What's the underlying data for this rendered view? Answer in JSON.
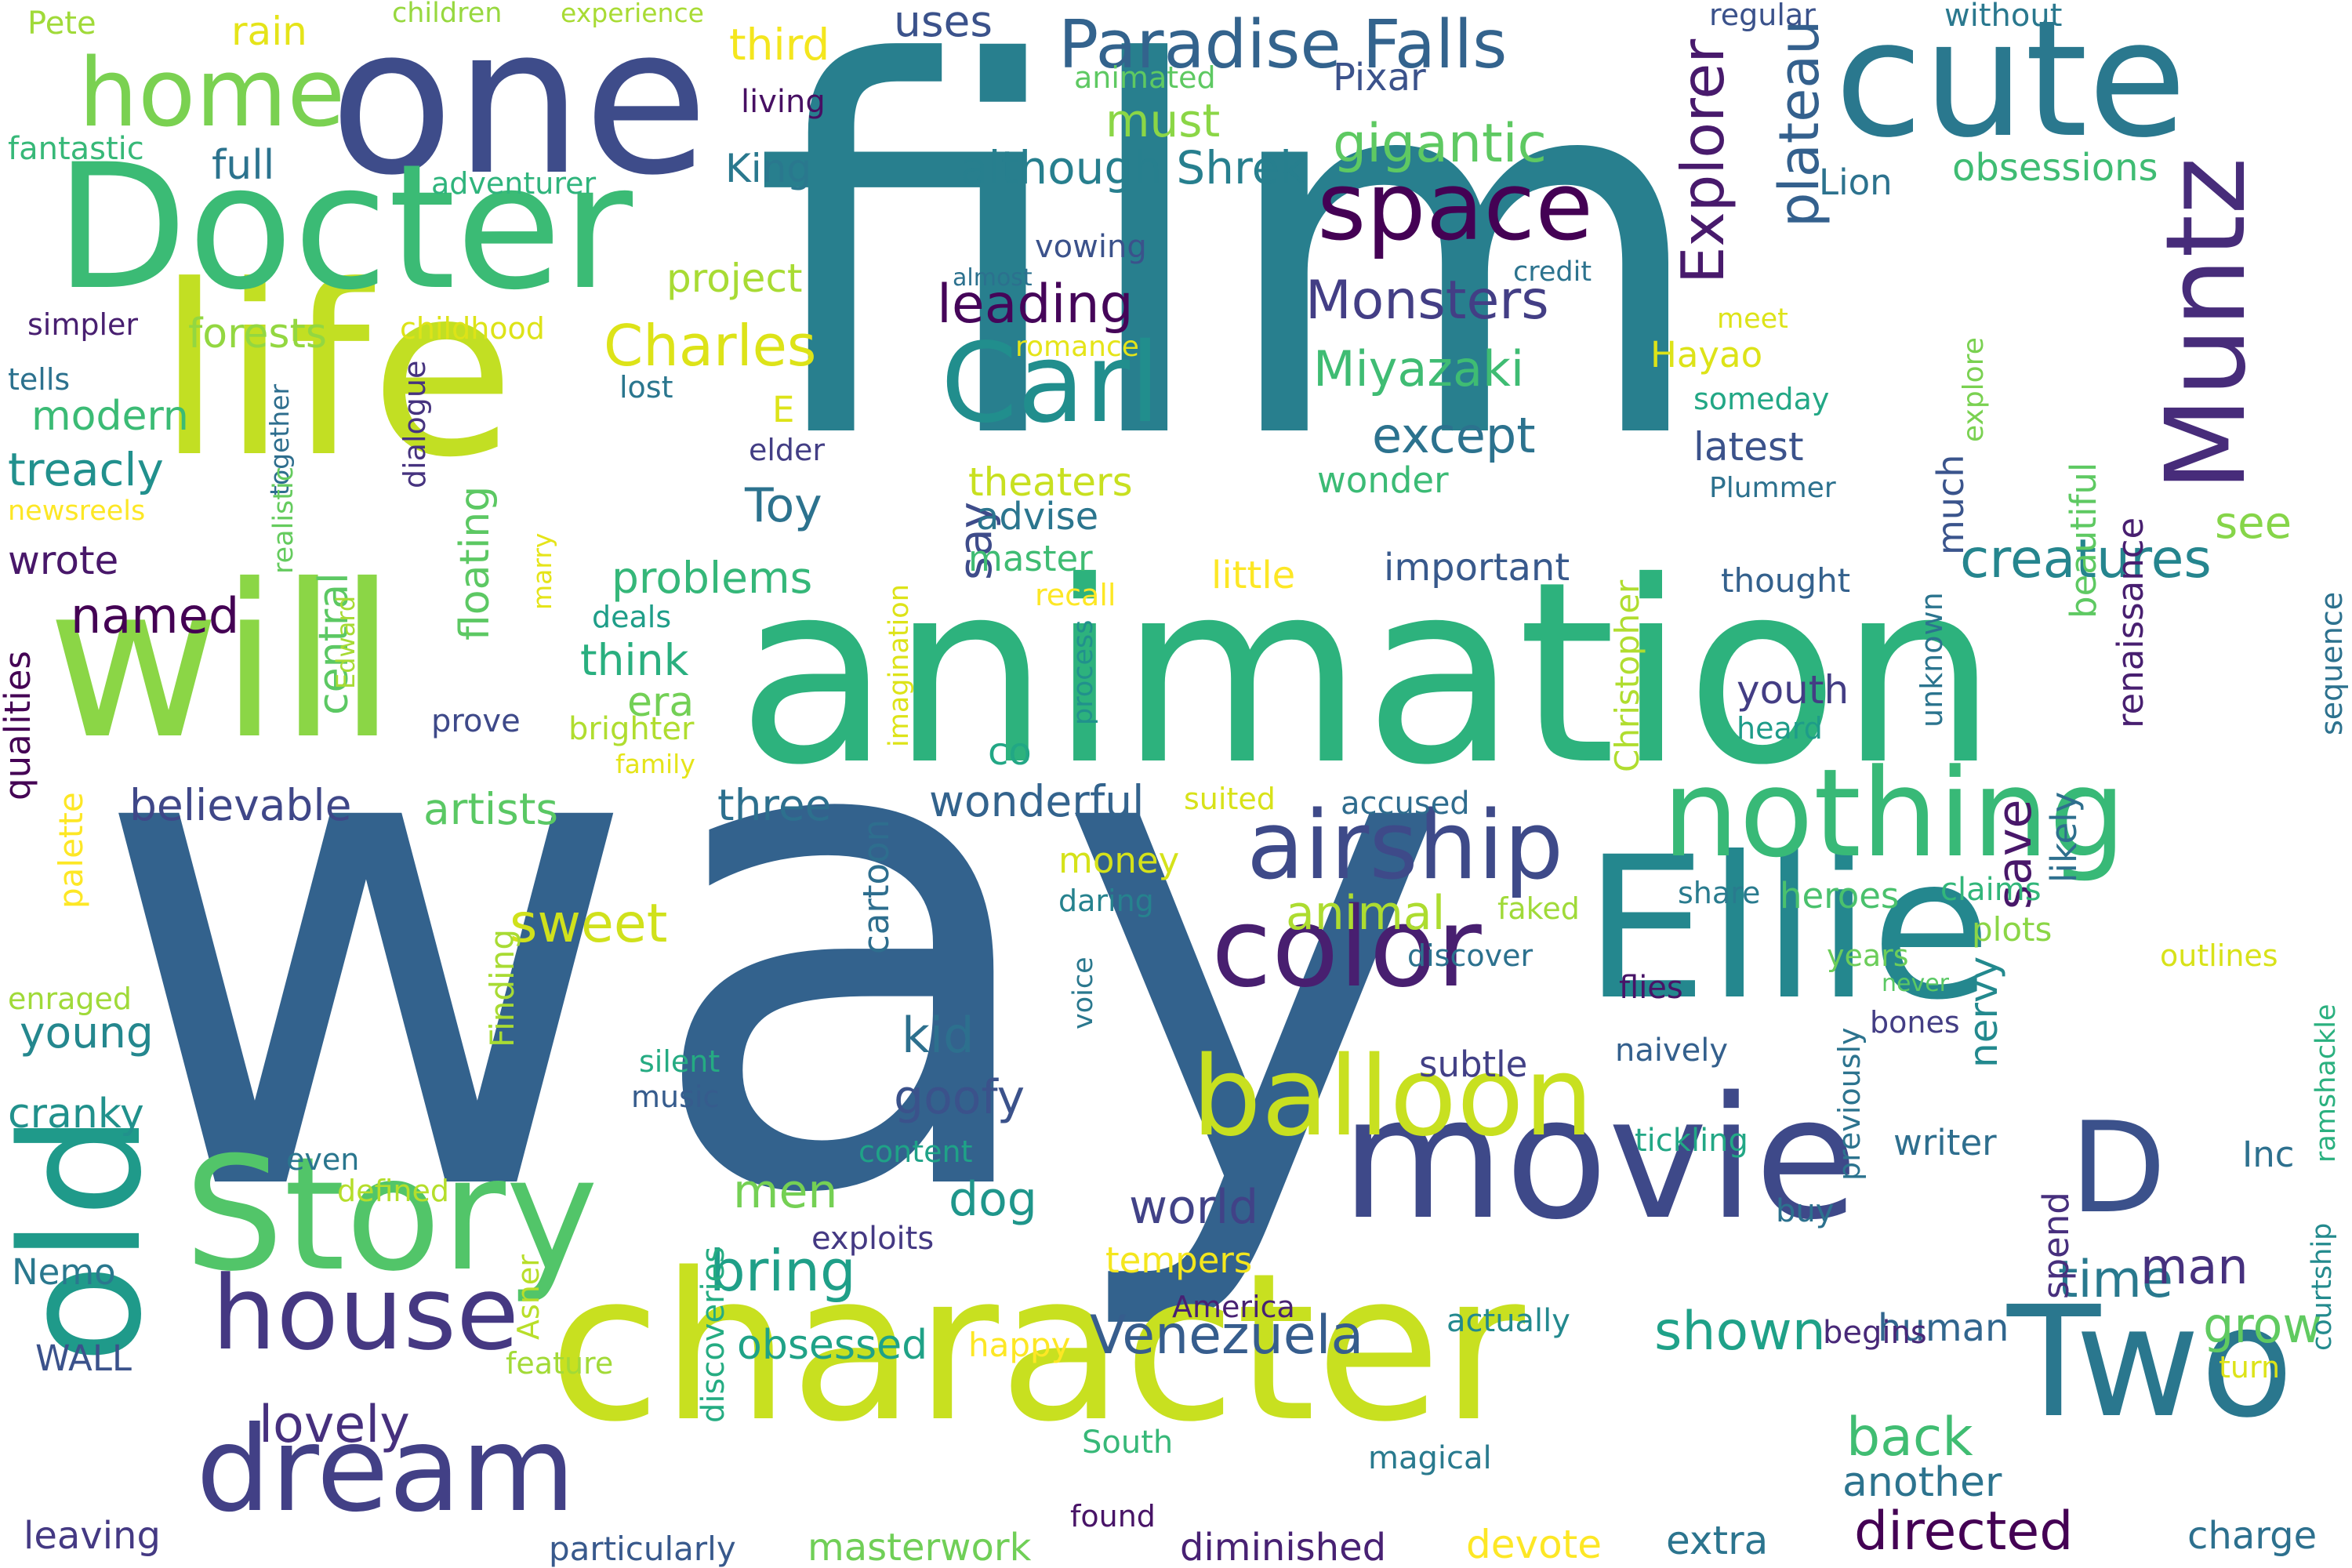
{
  "cloud": {
    "colors": [
      "#440154",
      "#472c7a",
      "#3b518b",
      "#2c718e",
      "#21908d",
      "#27ad81",
      "#5cc863",
      "#aadc32",
      "#d2e21b",
      "#fde725"
    ],
    "words": [
      {
        "text": "film",
        "color": "#287f8e"
      },
      {
        "text": "way",
        "color": "#33628d"
      },
      {
        "text": "animation",
        "color": "#2db27d"
      },
      {
        "text": "character",
        "color": "#c8e020"
      },
      {
        "text": "one",
        "color": "#3e4c8a"
      },
      {
        "text": "life",
        "color": "#c2df23"
      },
      {
        "text": "will",
        "color": "#8bd646"
      },
      {
        "text": "Docter",
        "color": "#3bbb75"
      },
      {
        "text": "cute",
        "color": "#2a788e"
      },
      {
        "text": "Ellie",
        "color": "#24878e"
      },
      {
        "text": "movie",
        "color": "#3e4989"
      },
      {
        "text": "Story",
        "color": "#52c569"
      },
      {
        "text": "old",
        "color": "#1f9a8a"
      },
      {
        "text": "Two",
        "color": "#2a778e"
      },
      {
        "text": "nothing",
        "color": "#38b977"
      },
      {
        "text": "dream",
        "color": "#424086"
      },
      {
        "text": "house",
        "color": "#453882"
      },
      {
        "text": "Muntz",
        "color": "#472c7a"
      },
      {
        "text": "airship",
        "color": "#3e4a89"
      },
      {
        "text": "color",
        "color": "#481f70"
      },
      {
        "text": "balloon",
        "color": "#c8e020"
      },
      {
        "text": "Carl",
        "color": "#218e8d"
      },
      {
        "text": "space",
        "color": "#440154"
      },
      {
        "text": "D",
        "color": "#3b518b"
      },
      {
        "text": "home",
        "color": "#7ad151"
      },
      {
        "text": "Paradise Falls",
        "color": "#33638d"
      },
      {
        "text": "Explorer",
        "color": "#481a6c"
      },
      {
        "text": "plateau",
        "color": "#34608d"
      },
      {
        "text": "creatures",
        "color": "#25858e"
      },
      {
        "text": "Monsters",
        "color": "#433e85"
      },
      {
        "text": "gigantic",
        "color": "#5ec962"
      },
      {
        "text": "except",
        "color": "#2c728e"
      },
      {
        "text": "Miyazaki",
        "color": "#3fbc73"
      },
      {
        "text": "leading",
        "color": "#450559"
      },
      {
        "text": "Charles",
        "color": "#dde318"
      },
      {
        "text": "Venezuela",
        "color": "#365d8d"
      },
      {
        "text": "back",
        "color": "#40bd72"
      },
      {
        "text": "directed",
        "color": "#440154"
      },
      {
        "text": "bring",
        "color": "#1f9f88"
      },
      {
        "text": "time",
        "color": "#29798e"
      },
      {
        "text": "man",
        "color": "#46307e"
      },
      {
        "text": "grow",
        "color": "#60ca60"
      },
      {
        "text": "shown",
        "color": "#1fa188"
      },
      {
        "text": "lovely",
        "color": "#46307e"
      },
      {
        "text": "sweet",
        "color": "#d0e11c"
      },
      {
        "text": "animal",
        "color": "#addc30"
      },
      {
        "text": "kid",
        "color": "#2d708e"
      },
      {
        "text": "dog",
        "color": "#1f968b"
      },
      {
        "text": "men",
        "color": "#75d054"
      },
      {
        "text": "world",
        "color": "#414287"
      },
      {
        "text": "goofy",
        "color": "#3b528b"
      },
      {
        "text": "save",
        "color": "#481769"
      },
      {
        "text": "see",
        "color": "#86d549"
      },
      {
        "text": "much",
        "color": "#3a548c"
      },
      {
        "text": "nervy",
        "color": "#23898e"
      },
      {
        "text": "another",
        "color": "#2c738e"
      },
      {
        "text": "extra",
        "color": "#2b748e"
      },
      {
        "text": "charge",
        "color": "#2d708e"
      },
      {
        "text": "devote",
        "color": "#fde725"
      },
      {
        "text": "masterwork",
        "color": "#70cf57"
      },
      {
        "text": "diminished",
        "color": "#482173"
      },
      {
        "text": "particularly",
        "color": "#38598c"
      },
      {
        "text": "leaving",
        "color": "#443983"
      },
      {
        "text": "obsessed",
        "color": "#1fa287"
      },
      {
        "text": "happy",
        "color": "#fde725"
      },
      {
        "text": "human",
        "color": "#31668e"
      },
      {
        "text": "begins",
        "color": "#482878"
      },
      {
        "text": "artists",
        "color": "#5ac864"
      },
      {
        "text": "three",
        "color": "#2d708e"
      },
      {
        "text": "wonderful",
        "color": "#33638d"
      },
      {
        "text": "believable",
        "color": "#3f4788"
      },
      {
        "text": "named",
        "color": "#440154"
      },
      {
        "text": "treacly",
        "color": "#21908d"
      },
      {
        "text": "young",
        "color": "#24878e"
      },
      {
        "text": "cranky",
        "color": "#21918c"
      },
      {
        "text": "modern",
        "color": "#3bbb75"
      },
      {
        "text": "wrote",
        "color": "#481769"
      },
      {
        "text": "forests",
        "color": "#93d741"
      },
      {
        "text": "full",
        "color": "#2c738e"
      },
      {
        "text": "problems",
        "color": "#35b779"
      },
      {
        "text": "think",
        "color": "#29af7f"
      },
      {
        "text": "era",
        "color": "#73d056"
      },
      {
        "text": "floating",
        "color": "#5cc863"
      },
      {
        "text": "central",
        "color": "#5cc863"
      },
      {
        "text": "qualities",
        "color": "#440154"
      },
      {
        "text": "palette",
        "color": "#fde725"
      },
      {
        "text": "enraged",
        "color": "#a0da39"
      },
      {
        "text": "Nemo",
        "color": "#2a788e"
      },
      {
        "text": "WALL",
        "color": "#3b528b"
      },
      {
        "text": "even",
        "color": "#2a768e"
      },
      {
        "text": "defined",
        "color": "#b5de2b"
      },
      {
        "text": "Finding",
        "color": "#a8db34"
      },
      {
        "text": "Asner",
        "color": "#b8de29"
      },
      {
        "text": "feature",
        "color": "#a2da37"
      },
      {
        "text": "discoveries",
        "color": "#25ac82"
      },
      {
        "text": "South",
        "color": "#37b878"
      },
      {
        "text": "found",
        "color": "#481467"
      },
      {
        "text": "magical",
        "color": "#297a8e"
      },
      {
        "text": "actually",
        "color": "#23898e"
      },
      {
        "text": "America",
        "color": "#482173"
      },
      {
        "text": "exploits",
        "color": "#443983"
      },
      {
        "text": "tempers",
        "color": "#f4e61e"
      },
      {
        "text": "content",
        "color": "#1fa287"
      },
      {
        "text": "music",
        "color": "#365c8d"
      },
      {
        "text": "silent",
        "color": "#25ab82"
      },
      {
        "text": "voice",
        "color": "#2a788e"
      },
      {
        "text": "cartoon",
        "color": "#2e6e8e"
      },
      {
        "text": "money",
        "color": "#d5e21a"
      },
      {
        "text": "daring",
        "color": "#26828e"
      },
      {
        "text": "co",
        "color": "#22a785"
      },
      {
        "text": "process",
        "color": "#21918c"
      },
      {
        "text": "imagination",
        "color": "#dde318"
      },
      {
        "text": "youth",
        "color": "#433d84"
      },
      {
        "text": "heard",
        "color": "#1e9c89"
      },
      {
        "text": "Christopher",
        "color": "#b0dd2f"
      },
      {
        "text": "unknown",
        "color": "#2b748e"
      },
      {
        "text": "thought",
        "color": "#34618d"
      },
      {
        "text": "accused",
        "color": "#2f6c8e"
      },
      {
        "text": "suited",
        "color": "#d8e219"
      },
      {
        "text": "share",
        "color": "#297b8e"
      },
      {
        "text": "claims",
        "color": "#32b67a"
      },
      {
        "text": "plots",
        "color": "#8bd646"
      },
      {
        "text": "likely",
        "color": "#2e6f8e"
      },
      {
        "text": "spend",
        "color": "#472f7d"
      },
      {
        "text": "Inc",
        "color": "#2d708e"
      },
      {
        "text": "buy",
        "color": "#2c718e"
      },
      {
        "text": "previously",
        "color": "#2c738e"
      },
      {
        "text": "writer",
        "color": "#2e6e8e"
      },
      {
        "text": "tickling",
        "color": "#22a785"
      },
      {
        "text": "naively",
        "color": "#34608d"
      },
      {
        "text": "flies",
        "color": "#481467"
      },
      {
        "text": "bones",
        "color": "#433d84"
      },
      {
        "text": "never",
        "color": "#5ac864"
      },
      {
        "text": "years",
        "color": "#6ccd5a"
      },
      {
        "text": "faked",
        "color": "#a0da39"
      },
      {
        "text": "discover",
        "color": "#2c718e"
      },
      {
        "text": "subtle",
        "color": "#424086"
      },
      {
        "text": "heroes",
        "color": "#4ac16d"
      },
      {
        "text": "outlines",
        "color": "#d8e219"
      },
      {
        "text": "ramshackle",
        "color": "#2ab07f"
      },
      {
        "text": "courtship",
        "color": "#238a8d"
      },
      {
        "text": "turn",
        "color": "#dde318"
      },
      {
        "text": "Toy",
        "color": "#2c728e"
      },
      {
        "text": "say",
        "color": "#3e4c8a"
      },
      {
        "text": "advise",
        "color": "#2b758e"
      },
      {
        "text": "master",
        "color": "#3fbc73"
      },
      {
        "text": "little",
        "color": "#fde725"
      },
      {
        "text": "important",
        "color": "#38598c"
      },
      {
        "text": "recall",
        "color": "#fde725"
      },
      {
        "text": "deals",
        "color": "#1f9e89"
      },
      {
        "text": "prove",
        "color": "#3e4989"
      },
      {
        "text": "brighter",
        "color": "#b0dd2f"
      },
      {
        "text": "family",
        "color": "#e5e419"
      },
      {
        "text": "marry",
        "color": "#e5e419"
      },
      {
        "text": "Edward",
        "color": "#a8db34"
      },
      {
        "text": "E",
        "color": "#dde318"
      },
      {
        "text": "elder",
        "color": "#433e85"
      },
      {
        "text": "lost",
        "color": "#2a768e"
      },
      {
        "text": "dialogue",
        "color": "#46337f"
      },
      {
        "text": "together",
        "color": "#2e6e8e"
      },
      {
        "text": "realistic",
        "color": "#65cb5e"
      },
      {
        "text": "newsreels",
        "color": "#fde725"
      },
      {
        "text": "tells",
        "color": "#2c718e"
      },
      {
        "text": "simpler",
        "color": "#481f70"
      },
      {
        "text": "childhood",
        "color": "#dde318"
      },
      {
        "text": "adventurer",
        "color": "#2fb47c"
      },
      {
        "text": "fantastic",
        "color": "#37b878"
      },
      {
        "text": "Pete",
        "color": "#a0da39"
      },
      {
        "text": "rain",
        "color": "#e5e419"
      },
      {
        "text": "children",
        "color": "#97d83f"
      },
      {
        "text": "experience",
        "color": "#a8db34"
      },
      {
        "text": "living",
        "color": "#471063"
      },
      {
        "text": "third",
        "color": "#f4e61e"
      },
      {
        "text": "uses",
        "color": "#3b528b"
      },
      {
        "text": "King",
        "color": "#2a788e"
      },
      {
        "text": "project",
        "color": "#a8db34"
      },
      {
        "text": "theaters",
        "color": "#c8e020"
      },
      {
        "text": "romance",
        "color": "#e5e419"
      },
      {
        "text": "almost",
        "color": "#2c718e"
      },
      {
        "text": "vowing",
        "color": "#3b528b"
      },
      {
        "text": "although Shrek",
        "color": "#277f8e"
      },
      {
        "text": "must",
        "color": "#8bd646"
      },
      {
        "text": "animated",
        "color": "#5ec962"
      },
      {
        "text": "Pixar",
        "color": "#3b528b"
      },
      {
        "text": "wonder",
        "color": "#3bbb75"
      },
      {
        "text": "credit",
        "color": "#2c738e"
      },
      {
        "text": "Hayao",
        "color": "#dde318"
      },
      {
        "text": "meet",
        "color": "#dde318"
      },
      {
        "text": "someday",
        "color": "#22a785"
      },
      {
        "text": "latest",
        "color": "#3b528b"
      },
      {
        "text": "Plummer",
        "color": "#2c718e"
      },
      {
        "text": "Lion",
        "color": "#2c728e"
      },
      {
        "text": "regular",
        "color": "#3b528b"
      },
      {
        "text": "without",
        "color": "#2a788e"
      },
      {
        "text": "obsessions",
        "color": "#3fbc73"
      },
      {
        "text": "explore",
        "color": "#7ad151"
      },
      {
        "text": "beautiful",
        "color": "#5ec962"
      },
      {
        "text": "renaissance",
        "color": "#481f70"
      },
      {
        "text": "sequence",
        "color": "#2c718e"
      }
    ]
  }
}
